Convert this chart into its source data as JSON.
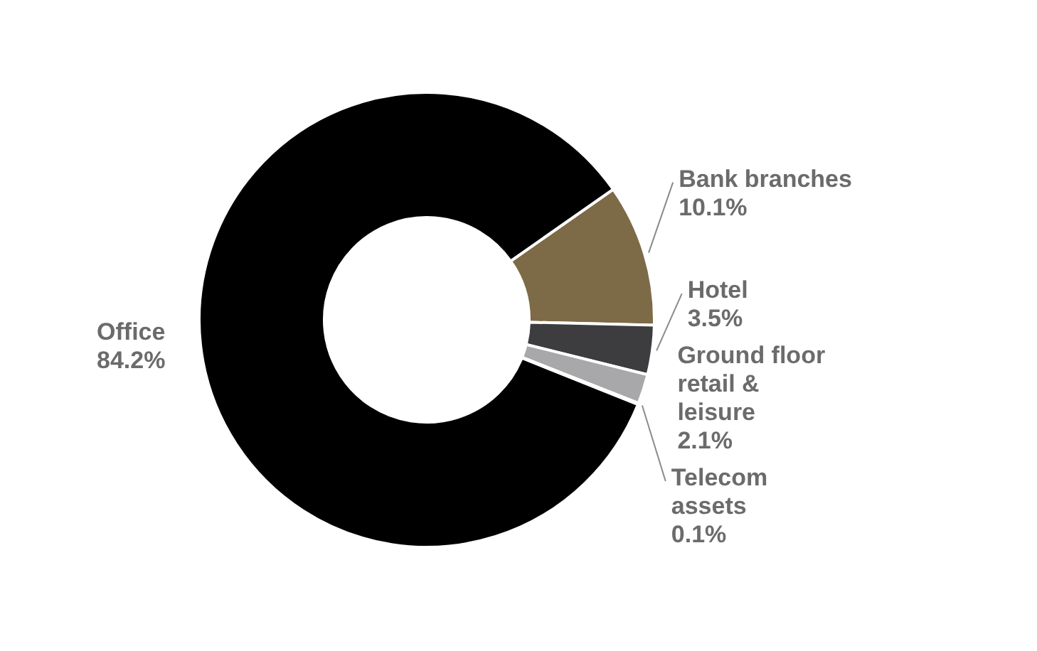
{
  "chart_data": {
    "type": "donut",
    "categories": [
      "Bank branches",
      "Hotel",
      "Ground floor retail & leisure",
      "Telecom assets",
      "Office"
    ],
    "values": [
      10.1,
      3.5,
      2.1,
      0.1,
      84.2
    ],
    "value_labels": [
      "10.1%",
      "3.5%",
      "2.1%",
      "0.1%",
      "84.2%"
    ],
    "colors": [
      "#7d6b47",
      "#3d3d3f",
      "#a8a8aa",
      "#d9d9d9",
      "#000000"
    ]
  }
}
